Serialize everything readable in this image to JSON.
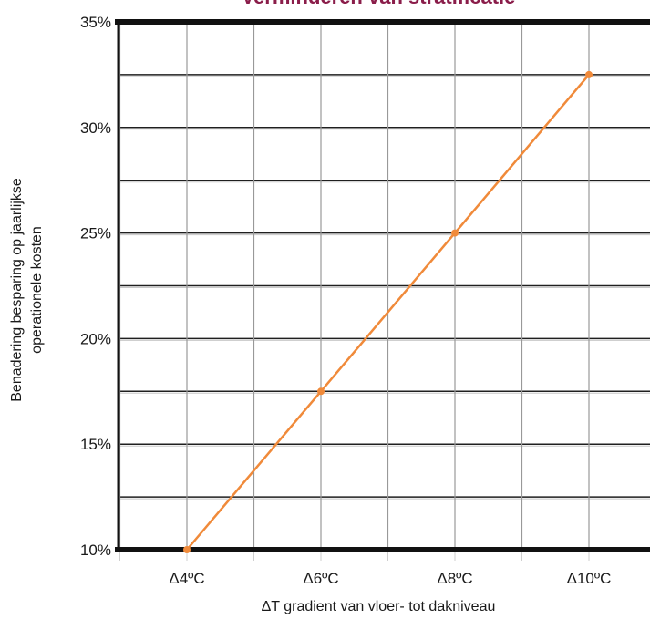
{
  "chart_data": {
    "type": "line",
    "title": "Verminderen van stratificatie",
    "xlabel": "ΔT gradient van vloer- tot dakniveau",
    "ylabel_lines": [
      "Benadering besparing op jaarlijkse",
      "operationele kosten"
    ],
    "categories": [
      "Δ4ºC",
      "Δ6ºC",
      "Δ8ºC",
      "Δ10ºC"
    ],
    "series": [
      {
        "values": [
          10,
          17.5,
          25,
          32.5
        ]
      }
    ],
    "ylim": [
      10,
      35
    ],
    "y_ticks": [
      "10%",
      "15%",
      "20%",
      "25%",
      "30%",
      "35%"
    ],
    "y_tick_values": [
      10,
      15,
      20,
      25,
      30,
      35
    ],
    "grid": true,
    "colors": {
      "line": "#f08a3a",
      "title": "#8a1d4a",
      "grid": "#999999",
      "frame": "#111111"
    }
  }
}
